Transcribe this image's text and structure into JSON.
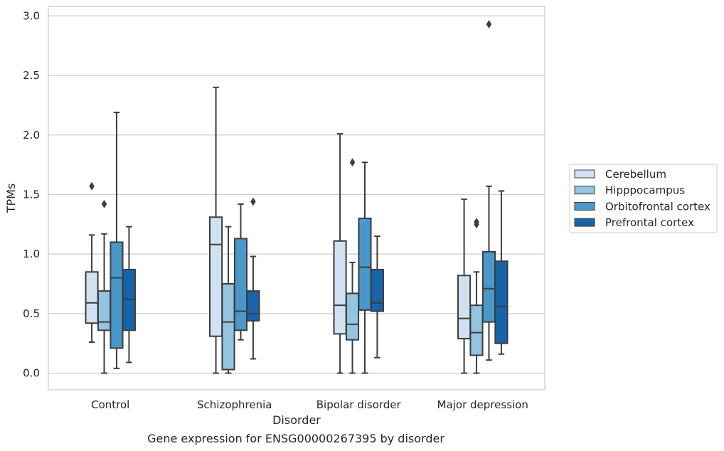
{
  "chart_data": {
    "type": "box",
    "caption": "Gene expression for ENSG00000267395 by disorder",
    "xlabel": "Disorder",
    "ylabel": "TPMs",
    "ylim": [
      -0.14,
      3.08
    ],
    "yticks": [
      0.0,
      0.5,
      1.0,
      1.5,
      2.0,
      2.5,
      3.0
    ],
    "ytick_labels": [
      "0.0",
      "0.5",
      "1.0",
      "1.5",
      "2.0",
      "2.5",
      "3.0"
    ],
    "grid": "horizontal",
    "legend_position": "right",
    "categories": [
      "Control",
      "Schizophrenia",
      "Bipolar disorder",
      "Major depression"
    ],
    "series": [
      {
        "name": "Cerebellum",
        "color": "#d0e1f2",
        "boxes": [
          {
            "whislo": 0.26,
            "q1": 0.42,
            "med": 0.59,
            "q3": 0.85,
            "whishi": 1.16,
            "fliers": [
              1.57
            ]
          },
          {
            "whislo": 0.0,
            "q1": 0.31,
            "med": 1.08,
            "q3": 1.31,
            "whishi": 2.4,
            "fliers": []
          },
          {
            "whislo": 0.0,
            "q1": 0.33,
            "med": 0.57,
            "q3": 1.11,
            "whishi": 2.01,
            "fliers": []
          },
          {
            "whislo": 0.0,
            "q1": 0.29,
            "med": 0.46,
            "q3": 0.82,
            "whishi": 1.46,
            "fliers": []
          }
        ]
      },
      {
        "name": "Hipppocampus",
        "color": "#94c4df",
        "boxes": [
          {
            "whislo": 0.0,
            "q1": 0.36,
            "med": 0.43,
            "q3": 0.69,
            "whishi": 1.17,
            "fliers": [
              1.42
            ]
          },
          {
            "whislo": 0.0,
            "q1": 0.03,
            "med": 0.43,
            "q3": 0.75,
            "whishi": 1.23,
            "fliers": []
          },
          {
            "whislo": 0.0,
            "q1": 0.28,
            "med": 0.41,
            "q3": 0.67,
            "whishi": 0.93,
            "fliers": [
              1.77
            ]
          },
          {
            "whislo": 0.0,
            "q1": 0.15,
            "med": 0.34,
            "q3": 0.57,
            "whishi": 0.85,
            "fliers": [
              1.25,
              1.27
            ]
          }
        ]
      },
      {
        "name": "Orbitofrontal cortex",
        "color": "#4a98c9",
        "boxes": [
          {
            "whislo": 0.04,
            "q1": 0.21,
            "med": 0.8,
            "q3": 1.1,
            "whishi": 2.19,
            "fliers": []
          },
          {
            "whislo": 0.28,
            "q1": 0.36,
            "med": 0.52,
            "q3": 1.13,
            "whishi": 1.42,
            "fliers": []
          },
          {
            "whislo": 0.0,
            "q1": 0.53,
            "med": 0.89,
            "q3": 1.3,
            "whishi": 1.77,
            "fliers": []
          },
          {
            "whislo": 0.11,
            "q1": 0.43,
            "med": 0.71,
            "q3": 1.02,
            "whishi": 1.57,
            "fliers": [
              2.93
            ]
          }
        ]
      },
      {
        "name": "Prefrontal cortex",
        "color": "#1764ab",
        "boxes": [
          {
            "whislo": 0.09,
            "q1": 0.36,
            "med": 0.62,
            "q3": 0.87,
            "whishi": 1.23,
            "fliers": []
          },
          {
            "whislo": 0.12,
            "q1": 0.44,
            "med": 0.5,
            "q3": 0.69,
            "whishi": 0.98,
            "fliers": [
              1.44
            ]
          },
          {
            "whislo": 0.13,
            "q1": 0.52,
            "med": 0.59,
            "q3": 0.87,
            "whishi": 1.15,
            "fliers": []
          },
          {
            "whislo": 0.16,
            "q1": 0.25,
            "med": 0.56,
            "q3": 0.94,
            "whishi": 1.53,
            "fliers": []
          }
        ]
      }
    ]
  }
}
